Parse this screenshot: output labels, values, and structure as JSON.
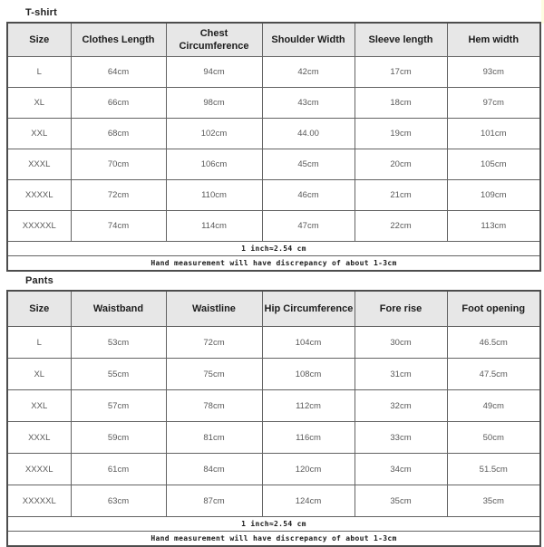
{
  "colors": {
    "header_background": "#e7e7e7",
    "border": "#4d4d4d",
    "header_text": "#1c1c1c",
    "cell_text": "#595959",
    "footnote_text": "#1a1a1a"
  },
  "tables": [
    {
      "title": "T-shirt",
      "headers": [
        "Size",
        "Clothes Length",
        "Chest Circumference",
        "Shoulder Width",
        "Sleeve length",
        "Hem width"
      ],
      "rows": [
        [
          "L",
          "64cm",
          "94cm",
          "42cm",
          "17cm",
          "93cm"
        ],
        [
          "XL",
          "66cm",
          "98cm",
          "43cm",
          "18cm",
          "97cm"
        ],
        [
          "XXL",
          "68cm",
          "102cm",
          "44.00",
          "19cm",
          "101cm"
        ],
        [
          "XXXL",
          "70cm",
          "106cm",
          "45cm",
          "20cm",
          "105cm"
        ],
        [
          "XXXXL",
          "72cm",
          "110cm",
          "46cm",
          "21cm",
          "109cm"
        ],
        [
          "XXXXXL",
          "74cm",
          "114cm",
          "47cm",
          "22cm",
          "113cm"
        ]
      ],
      "footnotes": [
        "1 inch≈2.54 cm",
        "Hand measurement will have discrepancy of about 1-3cm"
      ]
    },
    {
      "title": "Pants",
      "headers": [
        "Size",
        "Waistband",
        "Waistline",
        "Hip Circumference",
        "Fore rise",
        "Foot opening"
      ],
      "rows": [
        [
          "L",
          "53cm",
          "72cm",
          "104cm",
          "30cm",
          "46.5cm"
        ],
        [
          "XL",
          "55cm",
          "75cm",
          "108cm",
          "31cm",
          "47.5cm"
        ],
        [
          "XXL",
          "57cm",
          "78cm",
          "112cm",
          "32cm",
          "49cm"
        ],
        [
          "XXXL",
          "59cm",
          "81cm",
          "116cm",
          "33cm",
          "50cm"
        ],
        [
          "XXXXL",
          "61cm",
          "84cm",
          "120cm",
          "34cm",
          "51.5cm"
        ],
        [
          "XXXXXL",
          "63cm",
          "87cm",
          "124cm",
          "35cm",
          "35cm"
        ]
      ],
      "footnotes": [
        "1 inch≈2.54 cm",
        "Hand measurement will have discrepancy of about 1-3cm"
      ]
    }
  ]
}
